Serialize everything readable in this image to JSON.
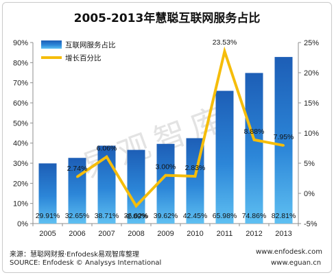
{
  "title": "2005-2013年慧聪互联网服务占比",
  "watermark": "易观智库",
  "footer": {
    "source_cn": "来源：慧聪网财报·Enfodesk易观智库整理",
    "url1": "www.enfodesk.com",
    "source_en": "SOURCE: Enfodesk © Analysys International",
    "url2": "www.eguan.cn"
  },
  "chart_data": {
    "type": "bar",
    "categories": [
      "2005",
      "2006",
      "2007",
      "2008",
      "2009",
      "2010",
      "2011",
      "2012",
      "2013"
    ],
    "series": [
      {
        "name": "互联网服务占比",
        "type": "bar",
        "axis": "left",
        "color": "#2a7fd4",
        "values": [
          29.91,
          32.65,
          38.71,
          36.62,
          39.62,
          42.45,
          65.98,
          74.86,
          82.81
        ],
        "labels": [
          "29.91%",
          "32.65%",
          "38.71%",
          "36.62%",
          "39.62%",
          "42.45%",
          "65.98%",
          "74.86%",
          "82.81%"
        ]
      },
      {
        "name": "增长百分比",
        "type": "line",
        "axis": "right",
        "color": "#f5bd0b",
        "x": [
          "2006",
          "2007",
          "2008",
          "2009",
          "2010",
          "2011",
          "2012",
          "2013"
        ],
        "values": [
          2.74,
          6.06,
          -2.09,
          3.0,
          2.83,
          23.53,
          8.88,
          7.95
        ],
        "labels": [
          "2.74%",
          "6.06%",
          "-2.09%",
          "3.00%",
          "2.83%",
          "23.53%",
          "8.88%",
          "7.95%"
        ]
      }
    ],
    "ylim": [
      0,
      90
    ],
    "y_ticks": [
      "0%",
      "10%",
      "20%",
      "30%",
      "40%",
      "50%",
      "60%",
      "70%",
      "80%",
      "90%"
    ],
    "y2lim": [
      -5,
      25
    ],
    "y2_ticks": [
      "-5%",
      "0%",
      "5%",
      "10%",
      "15%",
      "20%",
      "25%"
    ],
    "legend_position": "top-left",
    "grid": false
  }
}
